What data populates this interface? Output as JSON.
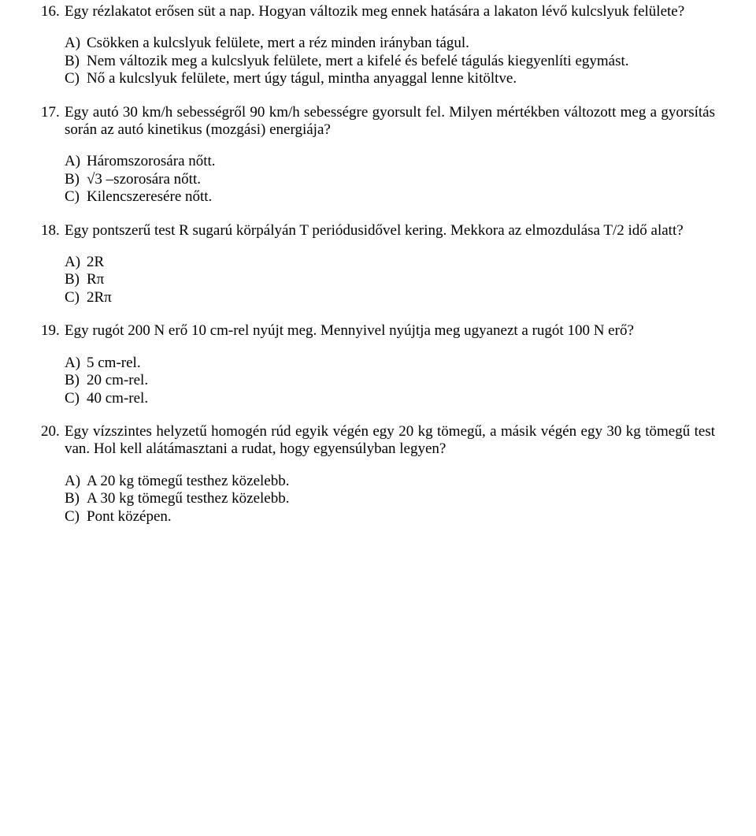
{
  "questions": [
    {
      "num": "16.",
      "text": "Egy rézlakatot erősen süt a nap. Hogyan változik meg ennek hatására a lakaton lévő kulcslyuk felülete?",
      "options": [
        {
          "label": "A)",
          "text": "Csökken a kulcslyuk felülete, mert a réz minden irányban tágul."
        },
        {
          "label": "B)",
          "text": "Nem változik meg a kulcslyuk felülete, mert a kifelé és befelé tágulás kiegyenlíti egymást."
        },
        {
          "label": "C)",
          "text": "Nő a kulcslyuk felülete, mert úgy tágul, mintha anyaggal lenne kitöltve."
        }
      ]
    },
    {
      "num": "17.",
      "text": "Egy autó 30 km/h sebességről 90 km/h sebességre gyorsult fel. Milyen mértékben változott meg a gyorsítás során az autó kinetikus (mozgási) energiája?",
      "options": [
        {
          "label": "A)",
          "text": "Háromszorosára nőtt."
        },
        {
          "label": "B)",
          "text": "√3 –szorosára nőtt."
        },
        {
          "label": "C)",
          "text": "Kilencszeresére nőtt."
        }
      ]
    },
    {
      "num": "18.",
      "text": "Egy pontszerű test R sugarú körpályán T periódusidővel kering. Mekkora az elmozdulása T/2 idő alatt?",
      "options": [
        {
          "label": "A)",
          "text": "2R"
        },
        {
          "label": "B)",
          "text": "Rπ"
        },
        {
          "label": "C)",
          "text": "2Rπ"
        }
      ]
    },
    {
      "num": "19.",
      "text": "Egy rugót 200 N erő 10 cm-rel nyújt meg. Mennyivel nyújtja meg ugyanezt a rugót 100 N erő?",
      "options": [
        {
          "label": "A)",
          "text": "5 cm-rel."
        },
        {
          "label": "B)",
          "text": "20 cm-rel."
        },
        {
          "label": "C)",
          "text": "40 cm-rel."
        }
      ]
    },
    {
      "num": "20.",
      "text": "Egy vízszintes helyzetű homogén rúd egyik végén egy 20 kg tömegű, a másik végén egy 30 kg tömegű test van. Hol kell alátámasztani a rudat, hogy egyensúlyban legyen?",
      "options": [
        {
          "label": "A)",
          "text": "A 20 kg tömegű testhez közelebb."
        },
        {
          "label": "B)",
          "text": "A 30 kg tömegű testhez közelebb."
        },
        {
          "label": "C)",
          "text": "Pont középen."
        }
      ]
    }
  ]
}
